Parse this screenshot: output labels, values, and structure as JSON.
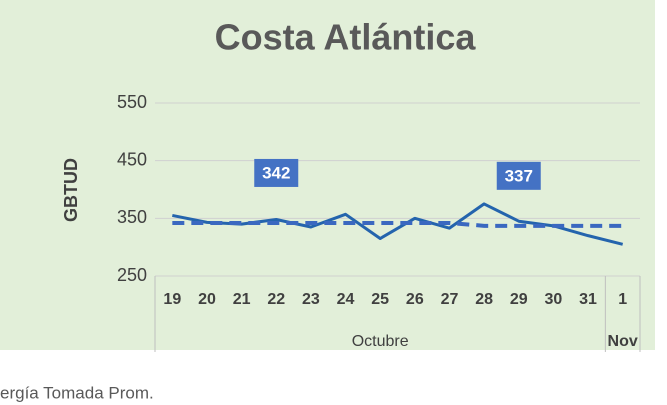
{
  "chart_data": {
    "type": "line",
    "title": "Costa Atlántica",
    "y_label": "GBTUD",
    "categories": [
      "19",
      "20",
      "21",
      "22",
      "23",
      "24",
      "25",
      "26",
      "27",
      "28",
      "29",
      "30",
      "31",
      "1"
    ],
    "x_groups": [
      {
        "label": "Octubre",
        "span": 13
      },
      {
        "label": "Nov",
        "span": 1
      }
    ],
    "series": [
      {
        "name": "Energía Tomada Prom.",
        "legend_label": "ergía Tomada Prom.",
        "color": "#2464ad",
        "style": "solid",
        "values": [
          355,
          343,
          340,
          348,
          335,
          357,
          315,
          350,
          333,
          375,
          345,
          337,
          320,
          305
        ]
      },
      {
        "color": "#3a68c0",
        "style": "dashed",
        "values": [
          342,
          342,
          342,
          342,
          342,
          342,
          342,
          342,
          342,
          337,
          337,
          337,
          337,
          337
        ]
      }
    ],
    "annotations": [
      {
        "text": "342",
        "x": "22",
        "y": 342
      },
      {
        "text": "337",
        "x": "29",
        "y": 337
      }
    ],
    "annotation_color": "#4472c4",
    "ylim": [
      250,
      550
    ],
    "yticks": [
      250,
      350,
      450,
      550
    ],
    "grid": true,
    "background": "#e2efd9"
  }
}
